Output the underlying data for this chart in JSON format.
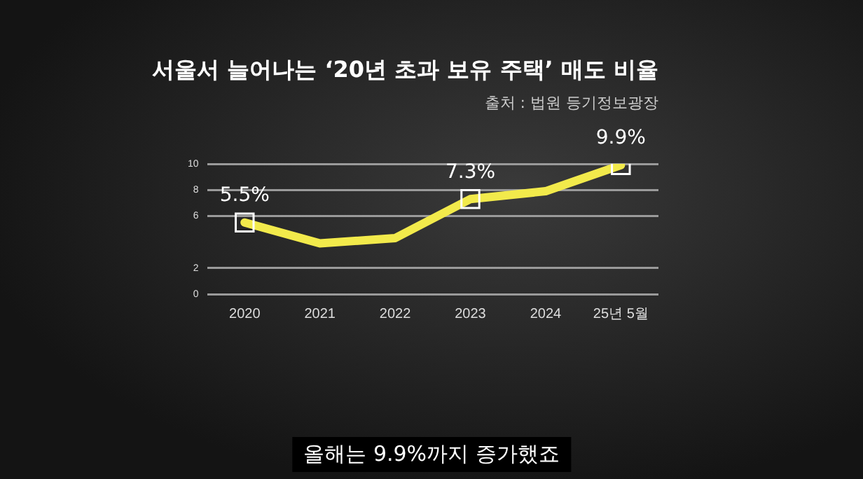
{
  "chart_data": {
    "type": "line",
    "title": "서울서 늘어나는 ‘20년 초과 보유 주택’ 매도 비율",
    "subtitle": "출처 : 법원 등기정보광장",
    "categories": [
      "2020",
      "2021",
      "2022",
      "2023",
      "2024",
      "25년 5월"
    ],
    "series": [
      {
        "color": "#f2ea4b",
        "values": [
          5.5,
          3.9,
          4.3,
          7.3,
          7.9,
          9.9
        ],
        "value_labels": [
          "5.5%",
          null,
          null,
          "7.3%",
          null,
          "9.9%"
        ]
      }
    ],
    "ylim": [
      0,
      10
    ],
    "yticks": [
      0,
      2,
      6,
      8,
      10
    ],
    "grid": "y",
    "legend": false,
    "marker": "square",
    "line_style": "solid",
    "annotations": [
      "올해는 9.9%까지 증가했죠"
    ]
  }
}
